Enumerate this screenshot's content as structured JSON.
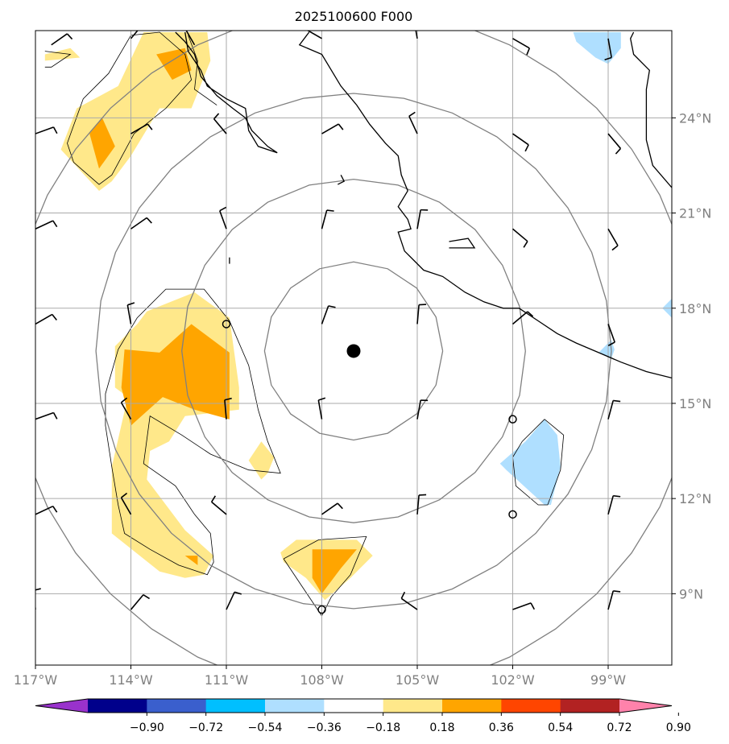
{
  "chart_data": {
    "type": "map",
    "title": "2025100600 F000",
    "lon_range": [
      -117,
      -97
    ],
    "lat_range": [
      6.75,
      26.75
    ],
    "lon_ticks": [
      {
        "value": -117,
        "label": "117°W"
      },
      {
        "value": -114,
        "label": "114°W"
      },
      {
        "value": -111,
        "label": "111°W"
      },
      {
        "value": -108,
        "label": "108°W"
      },
      {
        "value": -105,
        "label": "105°W"
      },
      {
        "value": -102,
        "label": "102°W"
      },
      {
        "value": -99,
        "label": "99°W"
      }
    ],
    "lat_ticks": [
      {
        "value": 24,
        "label": "24°N"
      },
      {
        "value": 21,
        "label": "21°N"
      },
      {
        "value": 18,
        "label": "18°N"
      },
      {
        "value": 15,
        "label": "15°N"
      },
      {
        "value": 12,
        "label": "12°N"
      },
      {
        "value": 9,
        "label": "9°N"
      }
    ],
    "center": {
      "lon": -107.0,
      "lat": 16.65
    },
    "range_rings_deg": [
      2.8,
      5.4,
      8.1,
      10.8
    ],
    "colorbar": {
      "levels": [
        -0.9,
        -0.72,
        -0.54,
        -0.36,
        -0.18,
        0.18,
        0.36,
        0.54,
        0.72,
        0.9
      ],
      "labels": [
        "−0.90",
        "−0.72",
        "−0.54",
        "−0.36",
        "−0.18",
        "0.18",
        "0.36",
        "0.54",
        "0.72",
        "0.90"
      ],
      "colors": [
        "#9932cc",
        "#00008b",
        "#3a5fcd",
        "#00bfff",
        "#afdfff",
        "#ffffff",
        "#ffe88a",
        "#ffa500",
        "#ff4500",
        "#b22222",
        "#ff82ab"
      ]
    },
    "shaded_regions": [
      {
        "level": 0.18,
        "color": "#ffe88a",
        "points": [
          [
            -116.7,
            26.0
          ],
          [
            -115.9,
            26.2
          ],
          [
            -115.6,
            25.9
          ],
          [
            -116.7,
            25.8
          ]
        ]
      },
      {
        "level": 0.18,
        "color": "#ffe88a",
        "points": [
          [
            -114.4,
            25.0
          ],
          [
            -113.6,
            26.7
          ],
          [
            -111.6,
            26.7
          ],
          [
            -111.5,
            25.8
          ],
          [
            -112.1,
            24.3
          ],
          [
            -113.1,
            24.3
          ],
          [
            -114.0,
            22.8
          ],
          [
            -114.6,
            22.0
          ],
          [
            -115.0,
            21.7
          ],
          [
            -116.2,
            23.0
          ],
          [
            -115.7,
            24.3
          ]
        ]
      },
      {
        "level": 0.36,
        "color": "#ffa500",
        "points": [
          [
            -114.9,
            24.0
          ],
          [
            -114.5,
            23.1
          ],
          [
            -115.0,
            22.4
          ],
          [
            -115.3,
            23.5
          ]
        ]
      },
      {
        "level": 0.36,
        "color": "#ffa500",
        "points": [
          [
            -113.2,
            26.0
          ],
          [
            -112.3,
            26.2
          ],
          [
            -112.1,
            25.5
          ],
          [
            -112.7,
            25.2
          ]
        ]
      },
      {
        "level": 0.18,
        "color": "#ffe88a",
        "points": [
          [
            -113.5,
            17.9
          ],
          [
            -112.0,
            18.5
          ],
          [
            -110.9,
            17.7
          ],
          [
            -110.6,
            15.5
          ],
          [
            -110.6,
            14.8
          ],
          [
            -112.3,
            14.6
          ],
          [
            -112.8,
            13.8
          ],
          [
            -113.4,
            13.5
          ],
          [
            -113.5,
            12.6
          ],
          [
            -112.3,
            11.0
          ],
          [
            -111.4,
            10.2
          ],
          [
            -111.7,
            9.6
          ],
          [
            -112.3,
            9.5
          ],
          [
            -113.1,
            9.7
          ],
          [
            -114.6,
            10.9
          ],
          [
            -114.6,
            13.0
          ],
          [
            -114.1,
            15.2
          ],
          [
            -114.5,
            15.5
          ],
          [
            -114.5,
            16.8
          ],
          [
            -113.8,
            17.5
          ]
        ]
      },
      {
        "level": 0.36,
        "color": "#ffa500",
        "points": [
          [
            -114.2,
            16.7
          ],
          [
            -113.1,
            16.6
          ],
          [
            -112.1,
            17.5
          ],
          [
            -110.9,
            16.6
          ],
          [
            -110.9,
            14.5
          ],
          [
            -112.0,
            14.8
          ],
          [
            -113.0,
            15.2
          ],
          [
            -114.0,
            14.3
          ],
          [
            -114.3,
            15.5
          ]
        ]
      },
      {
        "level": 0.36,
        "color": "#ffa500",
        "points": [
          [
            -112.3,
            10.2
          ],
          [
            -111.9,
            10.2
          ],
          [
            -111.9,
            9.9
          ]
        ]
      },
      {
        "level": 0.18,
        "color": "#ffe88a",
        "points": [
          [
            -109.9,
            13.8
          ],
          [
            -109.5,
            13.3
          ],
          [
            -109.7,
            12.8
          ],
          [
            -109.9,
            12.6
          ],
          [
            -110.3,
            13.2
          ]
        ]
      },
      {
        "level": 0.18,
        "color": "#ffe88a",
        "points": [
          [
            -109.3,
            10.3
          ],
          [
            -108.8,
            10.7
          ],
          [
            -106.9,
            10.7
          ],
          [
            -106.4,
            10.2
          ],
          [
            -107.1,
            9.5
          ],
          [
            -107.9,
            8.8
          ],
          [
            -108.5,
            9.5
          ],
          [
            -109.2,
            10.0
          ]
        ]
      },
      {
        "level": 0.36,
        "color": "#ffa500",
        "points": [
          [
            -108.3,
            10.4
          ],
          [
            -106.9,
            10.4
          ],
          [
            -107.4,
            9.8
          ],
          [
            -108.0,
            9.0
          ],
          [
            -108.3,
            9.5
          ]
        ]
      },
      {
        "level": -0.18,
        "color": "#afdfff",
        "points": [
          [
            -101.0,
            14.5
          ],
          [
            -100.6,
            14.0
          ],
          [
            -100.5,
            13.0
          ],
          [
            -100.8,
            11.8
          ],
          [
            -101.0,
            11.8
          ],
          [
            -102.2,
            12.9
          ],
          [
            -102.4,
            13.1
          ],
          [
            -101.6,
            13.8
          ]
        ]
      },
      {
        "level": -0.18,
        "color": "#afdfff",
        "points": [
          [
            -100.1,
            26.7
          ],
          [
            -98.6,
            26.7
          ],
          [
            -98.6,
            26.2
          ],
          [
            -99.0,
            25.7
          ],
          [
            -99.4,
            25.9
          ],
          [
            -100.0,
            26.4
          ]
        ]
      },
      {
        "level": -0.18,
        "color": "#afdfff",
        "points": [
          [
            -98.8,
            16.7
          ],
          [
            -98.9,
            16.4
          ],
          [
            -99.3,
            16.6
          ],
          [
            -98.9,
            17.0
          ]
        ]
      },
      {
        "level": -0.18,
        "color": "#afdfff",
        "points": [
          [
            -97.0,
            18.3
          ],
          [
            -97.3,
            18.0
          ],
          [
            -97.0,
            17.7
          ]
        ]
      }
    ],
    "contour_lines": [
      [
        [
          -113.8,
          17.7
        ],
        [
          -112.9,
          18.6
        ],
        [
          -111.7,
          18.6
        ],
        [
          -110.9,
          17.6
        ],
        [
          -110.3,
          16.2
        ],
        [
          -110.0,
          14.8
        ],
        [
          -109.7,
          13.8
        ],
        [
          -109.3,
          12.8
        ],
        [
          -110.3,
          12.9
        ],
        [
          -111.5,
          13.4
        ],
        [
          -112.4,
          14.0
        ],
        [
          -113.4,
          14.6
        ],
        [
          -113.6,
          13.1
        ],
        [
          -112.6,
          12.4
        ],
        [
          -112.0,
          11.5
        ],
        [
          -111.5,
          10.9
        ],
        [
          -111.4,
          10.0
        ],
        [
          -111.6,
          9.6
        ],
        [
          -112.5,
          9.9
        ],
        [
          -113.4,
          10.4
        ],
        [
          -114.2,
          10.9
        ],
        [
          -114.4,
          11.8
        ],
        [
          -114.6,
          13.0
        ],
        [
          -114.8,
          14.3
        ],
        [
          -114.8,
          15.3
        ],
        [
          -114.4,
          16.7
        ],
        [
          -113.8,
          17.7
        ]
      ],
      [
        [
          -116.7,
          26.1
        ],
        [
          -115.9,
          26.0
        ],
        [
          -116.5,
          25.6
        ],
        [
          -116.7,
          25.6
        ]
      ],
      [
        [
          -114.0,
          26.6
        ],
        [
          -113.1,
          26.7
        ],
        [
          -112.3,
          26.0
        ],
        [
          -112.1,
          25.2
        ],
        [
          -112.9,
          24.3
        ],
        [
          -113.9,
          23.5
        ],
        [
          -114.6,
          22.2
        ],
        [
          -115.0,
          21.9
        ],
        [
          -115.8,
          22.6
        ],
        [
          -116.0,
          23.2
        ],
        [
          -115.5,
          24.6
        ],
        [
          -114.7,
          25.4
        ],
        [
          -114.0,
          26.6
        ]
      ],
      [
        [
          -112.2,
          26.6
        ],
        [
          -111.9,
          25.8
        ],
        [
          -112.0,
          24.9
        ],
        [
          -111.3,
          24.4
        ]
      ],
      [
        [
          -109.2,
          10.1
        ],
        [
          -108.1,
          10.7
        ],
        [
          -106.6,
          10.8
        ],
        [
          -107.1,
          9.6
        ],
        [
          -107.7,
          8.9
        ],
        [
          -108.0,
          8.3
        ],
        [
          -108.6,
          9.2
        ],
        [
          -109.2,
          10.1
        ]
      ],
      [
        [
          -101.0,
          14.5
        ],
        [
          -100.4,
          14.0
        ],
        [
          -100.5,
          12.9
        ],
        [
          -100.9,
          11.8
        ],
        [
          -101.2,
          11.8
        ],
        [
          -101.9,
          12.4
        ],
        [
          -102.0,
          13.3
        ],
        [
          -101.7,
          13.8
        ],
        [
          -101.0,
          14.5
        ]
      ]
    ],
    "coastlines": [
      [
        [
          -112.6,
          26.7
        ],
        [
          -112.3,
          26.4
        ],
        [
          -112.0,
          26.0
        ],
        [
          -111.8,
          25.3
        ],
        [
          -111.3,
          24.7
        ],
        [
          -110.8,
          24.3
        ],
        [
          -110.4,
          24.0
        ],
        [
          -110.2,
          23.6
        ],
        [
          -109.7,
          23.1
        ],
        [
          -109.4,
          22.9
        ],
        [
          -110.0,
          23.1
        ],
        [
          -110.3,
          23.6
        ],
        [
          -110.4,
          24.3
        ],
        [
          -111.0,
          24.6
        ],
        [
          -111.6,
          25.0
        ],
        [
          -111.8,
          25.5
        ],
        [
          -112.2,
          26.1
        ],
        [
          -112.3,
          26.7
        ]
      ],
      [
        [
          -108.4,
          26.7
        ],
        [
          -108.7,
          26.3
        ],
        [
          -108.0,
          26.0
        ],
        [
          -107.4,
          25.0
        ],
        [
          -106.9,
          24.4
        ],
        [
          -106.5,
          23.8
        ],
        [
          -106.0,
          23.2
        ],
        [
          -105.6,
          22.8
        ],
        [
          -105.5,
          22.2
        ],
        [
          -105.3,
          21.7
        ],
        [
          -105.6,
          21.2
        ],
        [
          -105.3,
          20.8
        ],
        [
          -105.2,
          20.5
        ],
        [
          -105.6,
          20.4
        ],
        [
          -105.4,
          19.8
        ],
        [
          -104.8,
          19.2
        ],
        [
          -104.2,
          19.0
        ],
        [
          -103.5,
          18.5
        ],
        [
          -102.9,
          18.2
        ],
        [
          -102.3,
          18.0
        ],
        [
          -101.8,
          18.0
        ],
        [
          -101.2,
          17.6
        ],
        [
          -100.6,
          17.2
        ],
        [
          -100.0,
          16.9
        ],
        [
          -99.3,
          16.6
        ],
        [
          -98.6,
          16.3
        ],
        [
          -97.8,
          16.0
        ],
        [
          -97.0,
          15.8
        ]
      ],
      [
        [
          -104.0,
          20.1
        ],
        [
          -103.4,
          20.2
        ],
        [
          -103.2,
          19.9
        ],
        [
          -104.0,
          19.9
        ]
      ],
      [
        [
          -107.4,
          22.2
        ],
        [
          -107.3,
          22.0
        ],
        [
          -107.5,
          21.9
        ]
      ],
      [
        [
          -110.9,
          19.6
        ],
        [
          -110.9,
          19.4
        ]
      ],
      [
        [
          -98.2,
          26.7
        ],
        [
          -98.3,
          26.5
        ],
        [
          -98.2,
          26.0
        ],
        [
          -97.7,
          25.5
        ],
        [
          -97.8,
          24.9
        ],
        [
          -97.8,
          24.0
        ],
        [
          -97.8,
          23.3
        ],
        [
          -97.6,
          22.5
        ],
        [
          -97.0,
          21.8
        ]
      ]
    ],
    "wind_barbs": [
      [
        -116.5,
        26.3,
        55
      ],
      [
        -114.0,
        26.5,
        40
      ],
      [
        -112.0,
        26.3,
        -30
      ],
      [
        -108.0,
        26.5,
        -60
      ],
      [
        -105.0,
        26.5,
        -10
      ],
      [
        -102.0,
        26.5,
        120
      ],
      [
        -99.0,
        26.5,
        170
      ],
      [
        -117.0,
        23.5,
        70
      ],
      [
        -114.0,
        23.5,
        60
      ],
      [
        -111.0,
        23.5,
        -40
      ],
      [
        -108.0,
        23.5,
        60
      ],
      [
        -105.0,
        23.5,
        -25
      ],
      [
        -102.0,
        23.5,
        125
      ],
      [
        -99.0,
        23.5,
        140
      ],
      [
        -117.0,
        20.5,
        65
      ],
      [
        -114.0,
        20.5,
        55
      ],
      [
        -111.0,
        20.5,
        -20
      ],
      [
        -108.0,
        20.5,
        15
      ],
      [
        -105.0,
        20.5,
        10
      ],
      [
        -102.0,
        20.5,
        130
      ],
      [
        -99.0,
        20.5,
        150
      ],
      [
        -117.0,
        17.5,
        60
      ],
      [
        -114.0,
        17.5,
        -10
      ],
      [
        -111.0,
        17.5,
        null
      ],
      [
        -108.0,
        17.5,
        20
      ],
      [
        -105.0,
        17.5,
        5
      ],
      [
        -102.0,
        17.5,
        50
      ],
      [
        -99.0,
        17.5,
        160
      ],
      [
        -117.0,
        14.5,
        70
      ],
      [
        -114.0,
        14.5,
        -30
      ],
      [
        -111.0,
        14.5,
        -5
      ],
      [
        -108.0,
        14.5,
        -10
      ],
      [
        -105.0,
        14.5,
        10
      ],
      [
        -102.0,
        14.5,
        null
      ],
      [
        -99.0,
        14.5,
        15
      ],
      [
        -117.0,
        11.5,
        65
      ],
      [
        -114.0,
        11.5,
        -30
      ],
      [
        -111.0,
        11.5,
        -50
      ],
      [
        -108.0,
        11.5,
        55
      ],
      [
        -105.0,
        11.5,
        5
      ],
      [
        -102.0,
        11.5,
        null
      ],
      [
        -99.0,
        11.5,
        15
      ],
      [
        -117.0,
        8.5,
        -5
      ],
      [
        -114.0,
        8.5,
        40
      ],
      [
        -111.0,
        8.5,
        25
      ],
      [
        -108.0,
        8.5,
        null
      ],
      [
        -105.0,
        8.5,
        -55
      ],
      [
        -102.0,
        8.5,
        70
      ],
      [
        -99.0,
        8.5,
        15
      ]
    ]
  }
}
